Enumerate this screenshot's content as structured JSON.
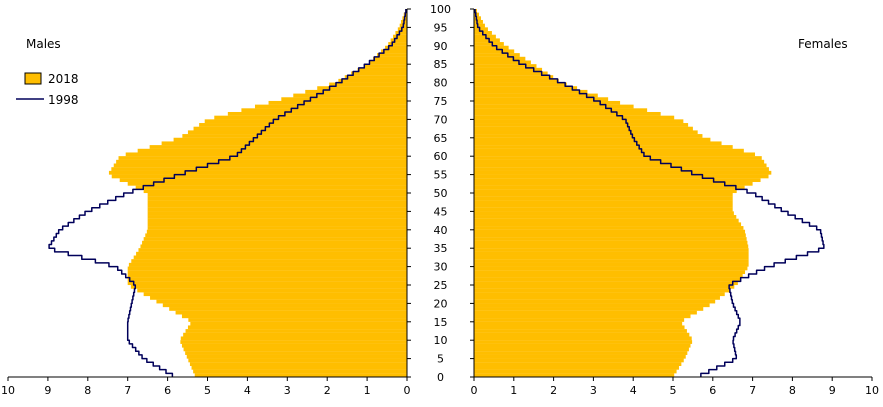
{
  "chart_data": {
    "type": "area",
    "subtype": "population-pyramid",
    "colors": {
      "2018": "#FFBE00",
      "1998": "#00005A"
    },
    "legend": {
      "placement": "top-left",
      "entries": [
        "2018",
        "1998"
      ]
    },
    "panels": {
      "males": {
        "title": "Males",
        "xlim": [
          10,
          0
        ]
      },
      "females": {
        "title": "Females",
        "xlim": [
          0,
          10
        ]
      }
    },
    "x_ticks": [
      "10",
      "9",
      "8",
      "7",
      "6",
      "5",
      "4",
      "3",
      "2",
      "1",
      "0"
    ],
    "x_ticks_right": [
      "0",
      "1",
      "2",
      "3",
      "4",
      "5",
      "6",
      "7",
      "8",
      "9",
      "10"
    ],
    "age_ticks": [
      "0",
      "5",
      "10",
      "15",
      "20",
      "25",
      "30",
      "35",
      "40",
      "45",
      "50",
      "55",
      "60",
      "65",
      "70",
      "75",
      "80",
      "85",
      "90",
      "95",
      "100"
    ],
    "ylim": [
      0,
      100
    ],
    "age_profile": [
      0,
      5,
      10,
      15,
      20,
      25,
      30,
      35,
      40,
      45,
      50,
      55,
      60,
      65,
      70,
      75,
      80,
      85,
      90,
      95,
      100
    ],
    "series": [
      {
        "name": "2018",
        "males": [
          5.3,
          5.5,
          5.7,
          5.4,
          6.2,
          7.0,
          7.0,
          6.7,
          6.5,
          6.5,
          6.5,
          7.5,
          7.2,
          5.7,
          5.0,
          3.3,
          1.8,
          1.0,
          0.5,
          0.2,
          0.03
        ],
        "females": [
          5.0,
          5.3,
          5.5,
          5.2,
          6.0,
          6.6,
          6.9,
          6.9,
          6.8,
          6.5,
          6.5,
          7.5,
          7.2,
          5.8,
          5.2,
          3.5,
          2.2,
          1.5,
          0.8,
          0.3,
          0.05
        ]
      },
      {
        "name": "1998",
        "males": [
          5.8,
          6.6,
          7.0,
          7.0,
          6.9,
          6.8,
          7.3,
          9.0,
          8.7,
          8.0,
          7.0,
          5.7,
          4.3,
          3.8,
          3.3,
          2.5,
          1.7,
          1.0,
          0.4,
          0.1,
          0.02
        ],
        "females": [
          5.6,
          6.6,
          6.5,
          6.7,
          6.5,
          6.4,
          7.4,
          8.8,
          8.7,
          7.8,
          7.0,
          5.6,
          4.3,
          4.0,
          3.8,
          3.1,
          2.2,
          1.2,
          0.5,
          0.1,
          0.02
        ]
      }
    ]
  }
}
